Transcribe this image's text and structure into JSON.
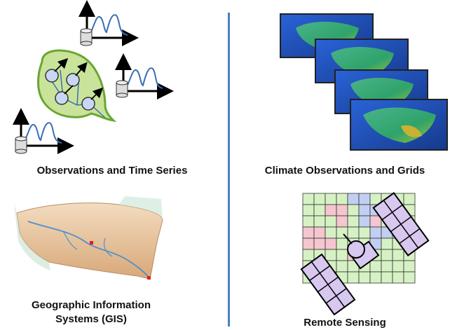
{
  "panels": {
    "observations": {
      "caption": "Observations and Time Series"
    },
    "climate": {
      "caption": "Climate Observations and Grids"
    },
    "gis": {
      "caption_line1": "Geographic Information",
      "caption_line2": "Systems (GIS)"
    },
    "remote": {
      "caption": "Remote Sensing"
    }
  },
  "colors": {
    "divider": "#4a7fc1",
    "timeseries_curve": "#3b6fb6",
    "watershed_fill": "#c9e39a",
    "watershed_stroke": "#6aa632",
    "node_fill": "#c9d7f5",
    "grid_green": "#d6f2c4",
    "grid_red": "#f5c6cf",
    "grid_blue": "#c2cff2",
    "satellite_panel": "#d8c8f0",
    "map_ocean": "#1f4fb8",
    "map_land": "#2fa36b"
  },
  "icons": [
    "database-icon",
    "axes-icon",
    "arrow-icon",
    "satellite-icon",
    "map-icon",
    "terrain-icon"
  ]
}
